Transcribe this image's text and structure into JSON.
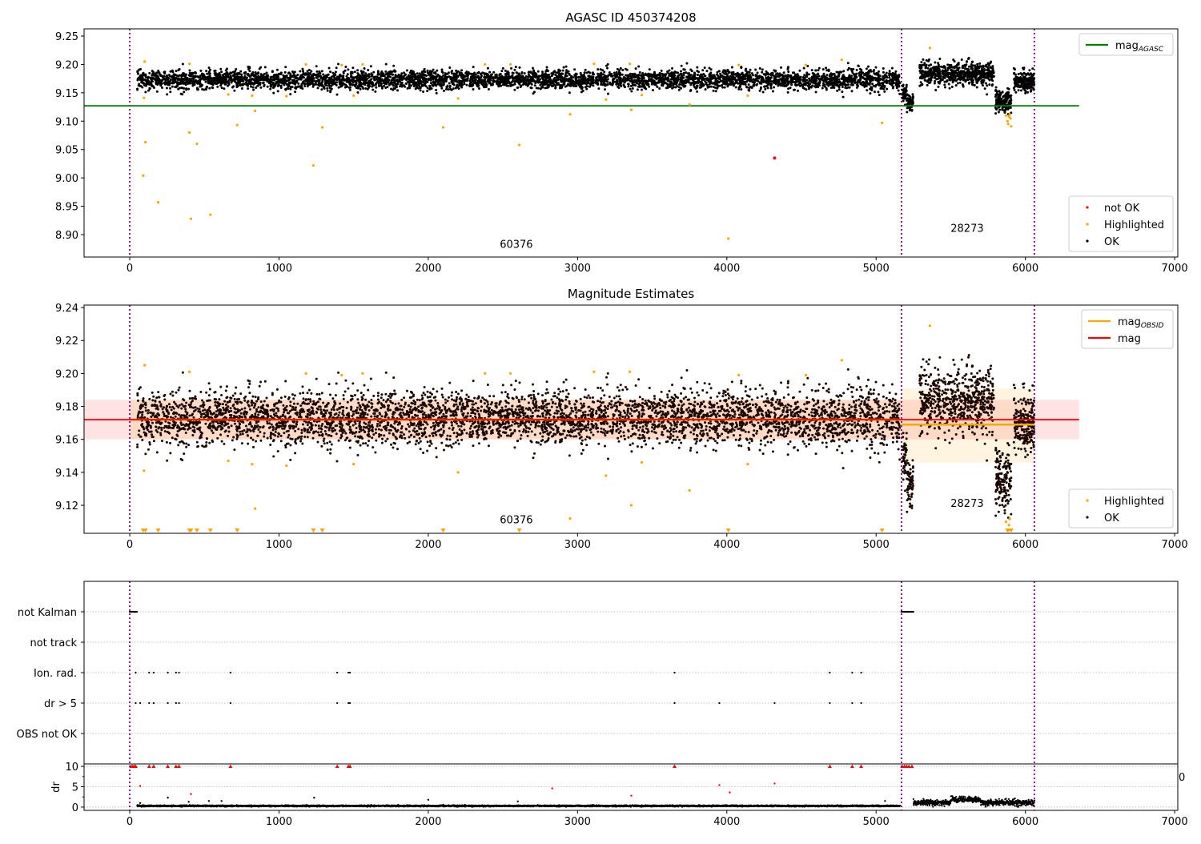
{
  "chart_data": [
    {
      "type": "scatter",
      "title": "AGASC ID 450374208",
      "xlim": [
        -306,
        7021
      ],
      "ylim": [
        8.8605,
        9.2627
      ],
      "xticks": [
        0,
        1000,
        2000,
        3000,
        4000,
        5000,
        6000,
        7000
      ],
      "yticks": [
        9.25,
        9.2,
        9.15,
        9.1,
        9.05,
        9.0,
        8.95,
        8.9
      ],
      "obs_boundaries": [
        0,
        5170,
        6060
      ],
      "obs_labels": [
        {
          "text": "60376",
          "x": 2590,
          "y": 8.877
        },
        {
          "text": "28273",
          "x": 5610,
          "y": 8.905
        }
      ],
      "lines": [
        {
          "name": "mag",
          "sub": "AGASC",
          "value": 9.127,
          "x": [
            -306,
            6360
          ],
          "color": "#008000"
        }
      ],
      "legend_upper": {
        "position": "upper-right",
        "entries": [
          {
            "label": "mag",
            "sub": "AGASC",
            "kind": "line",
            "color": "#008000"
          }
        ]
      },
      "legend_lower": {
        "position": "lower-right",
        "entries": [
          {
            "label": "not OK",
            "kind": "dot",
            "color": "#ff0000"
          },
          {
            "label": "Highlighted",
            "kind": "dot",
            "color": "#ffa500"
          },
          {
            "label": "OK",
            "kind": "dot",
            "color": "#000000"
          }
        ]
      }
    },
    {
      "type": "scatter",
      "title": "Magnitude Estimates",
      "xlim": [
        -306,
        7021
      ],
      "ylim": [
        9.103,
        9.2415
      ],
      "xticks": [
        0,
        1000,
        2000,
        3000,
        4000,
        5000,
        6000,
        7000
      ],
      "yticks": [
        9.24,
        9.22,
        9.2,
        9.18,
        9.16,
        9.14,
        9.12
      ],
      "obs_boundaries": [
        0,
        5170,
        6060
      ],
      "obs_labels": [
        {
          "text": "60376",
          "x": 2590,
          "y": 9.109
        },
        {
          "text": "28273",
          "x": 5610,
          "y": 9.119
        }
      ],
      "mag": {
        "value": 9.172,
        "band": [
          9.16,
          9.184
        ],
        "x": [
          -306,
          6360
        ],
        "color": "#ff0000"
      },
      "mag_obsid": [
        {
          "obsid": "60376",
          "value": 9.172,
          "band": [
            9.16,
            9.184
          ],
          "x": [
            0,
            5170
          ]
        },
        {
          "obsid": "28273",
          "value": 9.169,
          "band": [
            9.146,
            9.191
          ],
          "x": [
            5170,
            6060
          ]
        }
      ],
      "legend_upper": {
        "position": "upper-right",
        "entries": [
          {
            "label": "mag",
            "sub": "OBSID",
            "kind": "line",
            "color": "#ffa500"
          },
          {
            "label": "mag",
            "kind": "line",
            "color": "#ff0000"
          }
        ]
      },
      "legend_lower": {
        "position": "lower-right",
        "entries": [
          {
            "label": "Highlighted",
            "kind": "dot",
            "color": "#ffa500"
          },
          {
            "label": "OK",
            "kind": "dot",
            "color": "#000000"
          }
        ]
      }
    },
    {
      "type": "scatter",
      "title": "",
      "xlim": [
        -306,
        7021
      ],
      "xticks": [
        0,
        1000,
        2000,
        3000,
        4000,
        5000,
        6000,
        7000
      ],
      "categories": [
        "not Kalman",
        "not track",
        "Ion. rad.",
        "dr > 5",
        "OBS not OK"
      ],
      "flags": {
        "not Kalman": [
          [
            0,
            50
          ],
          [
            5170,
            5250
          ]
        ],
        "not track": [],
        "Ion. rad.": [
          40,
          130,
          160,
          255,
          310,
          330,
          675,
          1390,
          1465,
          1475,
          3650,
          4690,
          4840,
          4900
        ],
        "dr > 5": [
          40,
          70,
          130,
          160,
          255,
          310,
          330,
          675,
          1390,
          1465,
          1475,
          3650,
          3950,
          4320,
          4690,
          4840,
          4900
        ],
        "OBS not OK": []
      },
      "dr_axis": {
        "ylabel": "dr",
        "ylim": [
          -0.8,
          10.6
        ],
        "yticks": [
          0,
          5,
          10
        ],
        "clipped_at": 10,
        "red_points": [
          [
            10,
            10
          ],
          [
            20,
            10
          ],
          [
            30,
            10
          ],
          [
            40,
            10
          ],
          [
            130,
            10
          ],
          [
            160,
            10
          ],
          [
            255,
            10
          ],
          [
            310,
            10
          ],
          [
            330,
            10
          ],
          [
            675,
            10
          ],
          [
            1390,
            10
          ],
          [
            1465,
            10
          ],
          [
            1475,
            10
          ],
          [
            3650,
            10
          ],
          [
            4690,
            10
          ],
          [
            4840,
            10
          ],
          [
            4900,
            10
          ],
          [
            5175,
            10
          ],
          [
            5190,
            10
          ],
          [
            5205,
            10
          ],
          [
            5220,
            10
          ],
          [
            5240,
            10
          ],
          [
            70,
            5.2
          ],
          [
            410,
            3.2
          ],
          [
            2830,
            4.6
          ],
          [
            3360,
            2.8
          ],
          [
            3950,
            5.4
          ],
          [
            4020,
            3.6
          ],
          [
            4320,
            5.8
          ]
        ],
        "ok_level": [
          {
            "x": [
              50,
              5160
            ],
            "mean": 0.3,
            "sd": 0.08
          },
          {
            "x": [
              5250,
              5500
            ],
            "mean": 1.1,
            "sd": 0.35
          },
          {
            "x": [
              5500,
              5700
            ],
            "mean": 1.9,
            "sd": 0.35
          },
          {
            "x": [
              5700,
              6060
            ],
            "mean": 1.1,
            "sd": 0.35
          }
        ],
        "ok_outliers": [
          [
            70,
            1.0
          ],
          [
            255,
            2.3
          ],
          [
            395,
            1.3
          ],
          [
            530,
            1.5
          ],
          [
            615,
            1.5
          ],
          [
            1235,
            2.3
          ],
          [
            2000,
            1.8
          ],
          [
            2600,
            1.4
          ],
          [
            5060,
            1.5
          ]
        ]
      },
      "clipped_tick_fragment": "0"
    }
  ],
  "observations": [
    {
      "obsid": "60376",
      "segments": [
        {
          "x": [
            50,
            5160
          ],
          "mean": 9.173,
          "sd": 0.0085,
          "n": 4600
        }
      ]
    },
    {
      "obsid": "28273",
      "segments": [
        {
          "x": [
            5175,
            5205
          ],
          "mean": 9.15,
          "sd": 0.007,
          "n": 40
        },
        {
          "x": [
            5205,
            5250
          ],
          "mean": 9.133,
          "sd": 0.007,
          "n": 60
        },
        {
          "x": [
            5290,
            5790
          ],
          "mean": 9.183,
          "sd": 0.01,
          "n": 600
        },
        {
          "x": [
            5800,
            5905
          ],
          "mean": 9.136,
          "sd": 0.01,
          "n": 160
        },
        {
          "x": [
            5920,
            6060
          ],
          "mean": 9.17,
          "sd": 0.009,
          "n": 200
        }
      ]
    }
  ],
  "highlighted_points": [
    [
      100,
      9.205
    ],
    [
      95,
      9.141
    ],
    [
      90,
      9.004
    ],
    [
      105,
      9.063
    ],
    [
      190,
      8.957
    ],
    [
      400,
      9.201
    ],
    [
      400,
      9.08
    ],
    [
      410,
      8.928
    ],
    [
      450,
      9.06
    ],
    [
      540,
      8.935
    ],
    [
      660,
      9.147
    ],
    [
      720,
      9.093
    ],
    [
      820,
      9.145
    ],
    [
      840,
      9.118
    ],
    [
      1050,
      9.144
    ],
    [
      1180,
      9.2
    ],
    [
      1230,
      9.022
    ],
    [
      1290,
      9.089
    ],
    [
      1420,
      9.199
    ],
    [
      1500,
      9.145
    ],
    [
      1560,
      9.2
    ],
    [
      2100,
      9.089
    ],
    [
      2200,
      9.14
    ],
    [
      2380,
      9.2
    ],
    [
      2550,
      9.2
    ],
    [
      2610,
      9.058
    ],
    [
      2950,
      9.112
    ],
    [
      3110,
      9.201
    ],
    [
      3190,
      9.138
    ],
    [
      3350,
      9.201
    ],
    [
      3360,
      9.12
    ],
    [
      3430,
      9.146
    ],
    [
      3750,
      9.129
    ],
    [
      4010,
      8.893
    ],
    [
      4080,
      9.199
    ],
    [
      4140,
      9.145
    ],
    [
      4530,
      9.199
    ],
    [
      4770,
      9.208
    ],
    [
      5040,
      9.097
    ],
    [
      5360,
      9.229
    ],
    [
      5870,
      9.11
    ],
    [
      5880,
      9.1
    ],
    [
      5885,
      9.095
    ],
    [
      5890,
      9.108
    ],
    [
      5895,
      9.112
    ],
    [
      5900,
      9.105
    ],
    [
      5905,
      9.091
    ]
  ],
  "not_ok_points": [
    [
      4320,
      9.035
    ]
  ],
  "colors": {
    "ok": "#000000",
    "highlighted": "#ffa500",
    "not_ok": "#ff0000",
    "boundary": "#800080",
    "grid": "#b0b0b0"
  }
}
